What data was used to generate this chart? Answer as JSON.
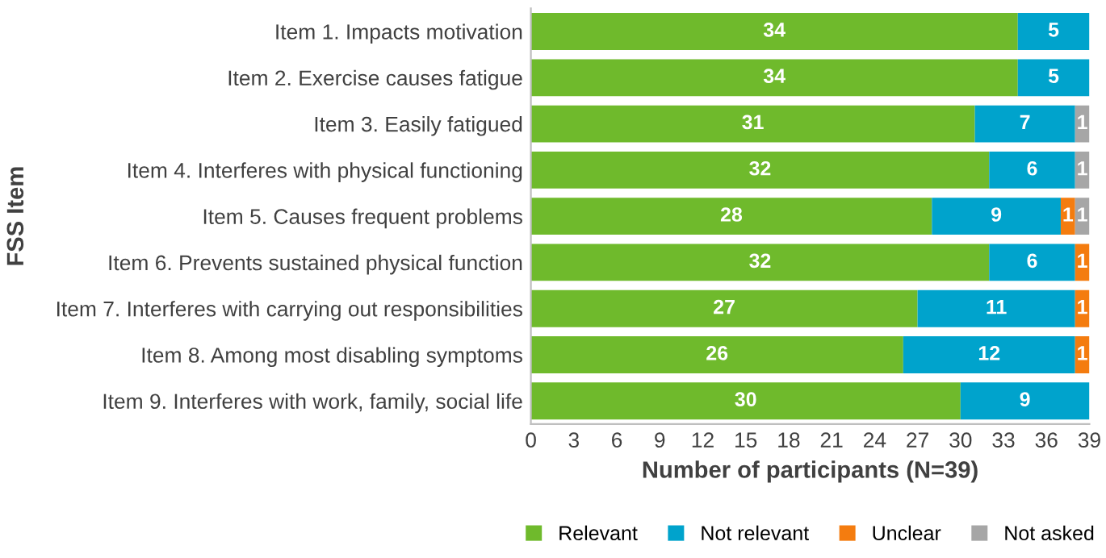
{
  "chart_data": {
    "type": "bar",
    "orientation": "horizontal",
    "stacked": true,
    "xlabel": "Number of participants (N=39)",
    "ylabel": "FSS Item",
    "categories": [
      "Item 1. Impacts motivation",
      "Item 2. Exercise causes fatigue",
      "Item 3. Easily fatigued",
      "Item 4. Interferes with physical functioning",
      "Item 5. Causes frequent problems",
      "Item 6. Prevents sustained physical function",
      "Item 7. Interferes with carrying out responsibilities",
      "Item 8. Among most disabling symptoms",
      "Item 9. Interferes with work, family, social life"
    ],
    "series": [
      {
        "name": "Relevant",
        "color": "#6fba2c",
        "values": [
          34,
          34,
          31,
          32,
          28,
          32,
          27,
          26,
          30
        ],
        "value_labels": [
          "34",
          "34",
          "31",
          "32",
          "28",
          "32",
          "27",
          "26",
          "30"
        ]
      },
      {
        "name": "Not relevant",
        "color": "#00a3cc",
        "values": [
          5,
          5,
          7,
          6,
          9,
          6,
          11,
          12,
          9
        ],
        "value_labels": [
          "5",
          "5",
          "7",
          "6",
          "9",
          "6",
          "11",
          "12",
          "9"
        ]
      },
      {
        "name": "Unclear",
        "color": "#f47c0f",
        "values": [
          0,
          0,
          0,
          0,
          1,
          1,
          1,
          1,
          0
        ],
        "value_labels": [
          null,
          null,
          null,
          null,
          "1",
          "1",
          "1",
          "1",
          null
        ]
      },
      {
        "name": "Not asked",
        "color": "#a6a6a6",
        "values": [
          0,
          0,
          1,
          1,
          1,
          0,
          0,
          0,
          0
        ],
        "value_labels": [
          null,
          null,
          "1",
          "1",
          "1",
          null,
          null,
          null,
          null
        ]
      }
    ],
    "xlim": [
      0,
      39
    ],
    "xticks": [
      0,
      3,
      6,
      9,
      12,
      15,
      18,
      21,
      24,
      27,
      30,
      33,
      36,
      39
    ],
    "grid": false,
    "legend": "bottom"
  }
}
